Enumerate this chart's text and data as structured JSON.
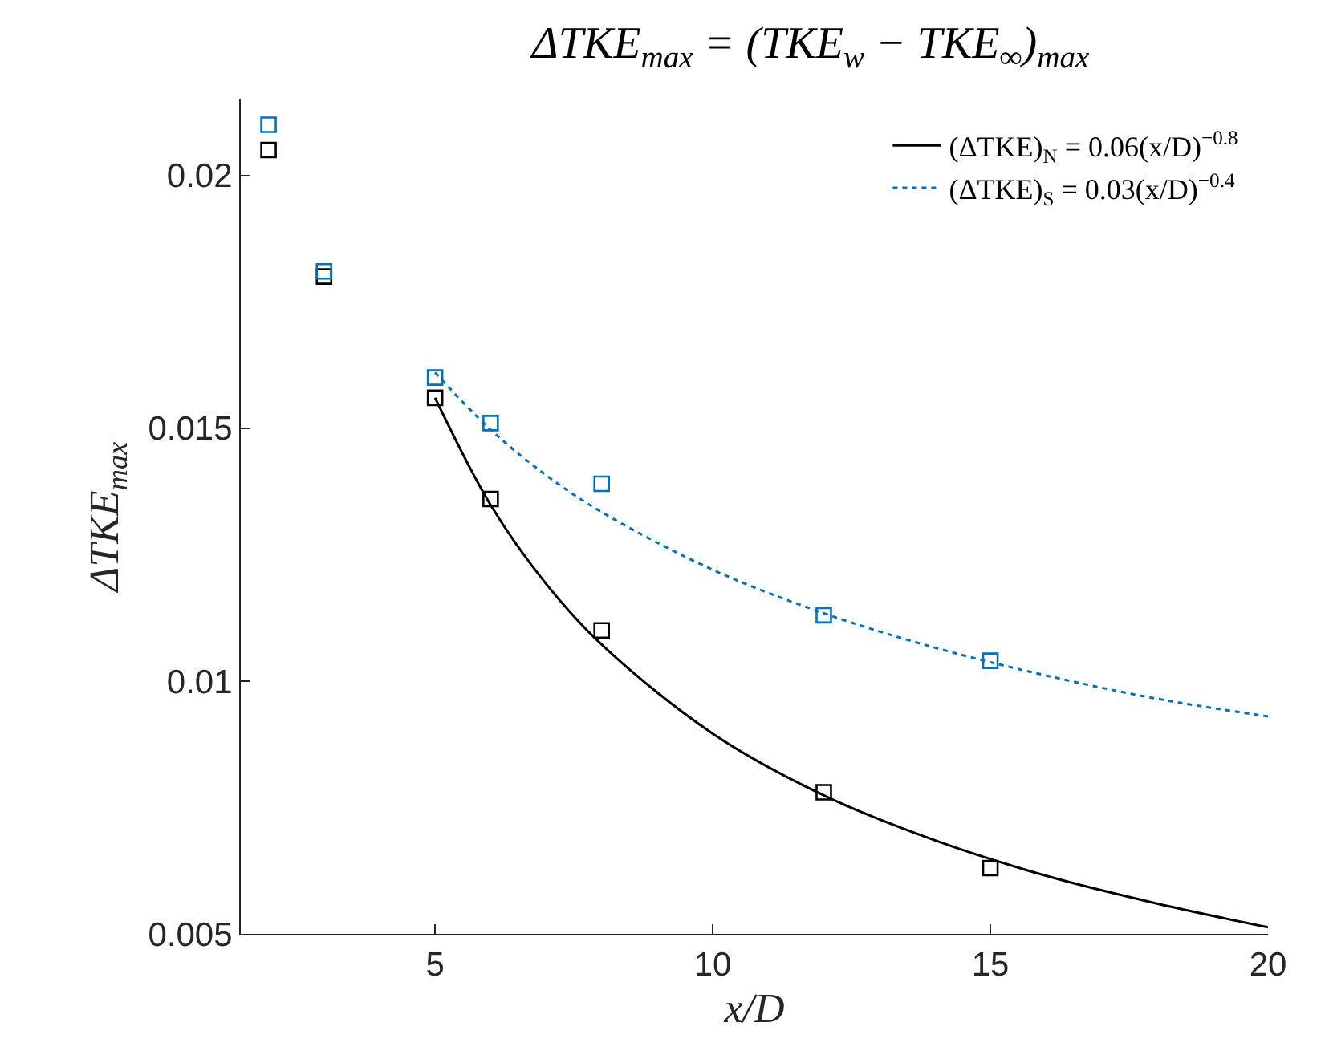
{
  "chart_data": {
    "type": "scatter",
    "title": "ΔTKE$_{max}$ = (TKE$_{w}$ − TKE$_{∞}$)$_{max}$",
    "xlabel": "x/D",
    "ylabel": "ΔTKE$_{max}$",
    "xlim": [
      1.5,
      20
    ],
    "xticks": [
      5,
      10,
      15,
      20
    ],
    "ylim": [
      0.005,
      0.0215
    ],
    "yticks": [
      0.005,
      0.01,
      0.015,
      0.02
    ],
    "legend": "top right",
    "marker": "square",
    "series": [
      {
        "color": "#000000",
        "x": [
          2,
          3,
          5,
          6,
          8,
          12,
          15
        ],
        "values": [
          0.0205,
          0.018,
          0.0156,
          0.0136,
          0.011,
          0.0078,
          0.0063
        ]
      },
      {
        "color": "#0072bd",
        "x": [
          2,
          3,
          5,
          6,
          8,
          12,
          15
        ],
        "values": [
          0.021,
          0.0181,
          0.016,
          0.0151,
          0.0139,
          0.0113,
          0.0104
        ]
      },
      {
        "type": "line",
        "name": "(ΔTKE)$_{N}$ = 0.06(x/D)$^{−0.8}$",
        "color": "#000000",
        "marker": "none",
        "line_style": "solid",
        "x": [
          5,
          6,
          7,
          8,
          10,
          12,
          14,
          16,
          18,
          20
        ],
        "values": [
          0.0156,
          0.01348,
          0.01192,
          0.01072,
          0.00896,
          0.00774,
          0.00685,
          0.00615,
          0.0056,
          0.00513
        ]
      },
      {
        "type": "line",
        "name": "(ΔTKE)$_{S}$ = 0.03(x/D)$^{−0.4}$",
        "color": "#0072bd",
        "marker": "none",
        "line_style": "dotted",
        "x": [
          5,
          6,
          7,
          8,
          10,
          12,
          14,
          16,
          18,
          20
        ],
        "values": [
          0.0161,
          0.01497,
          0.01407,
          0.01334,
          0.0122,
          0.01134,
          0.01066,
          0.01011,
          0.00965,
          0.0093
        ]
      }
    ]
  }
}
